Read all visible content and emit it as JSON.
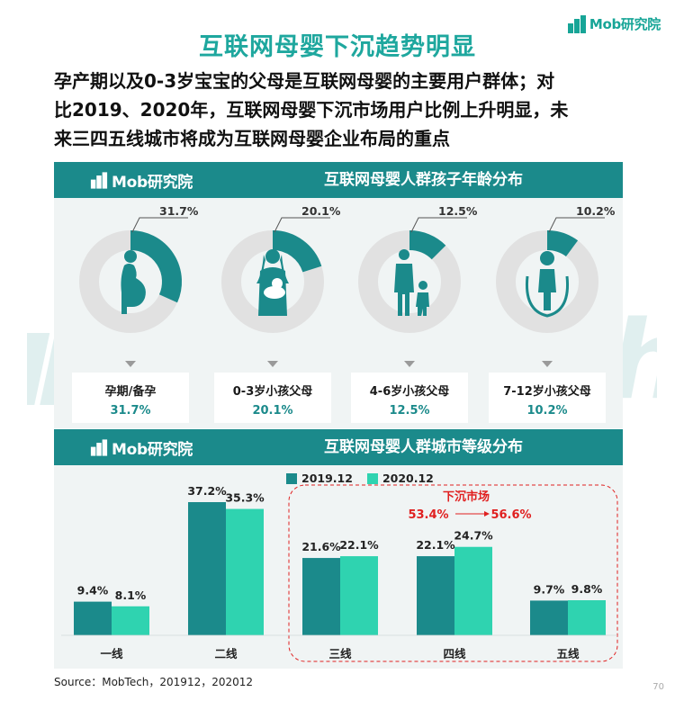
{
  "brand": {
    "logo_text": "Mob研究院",
    "accent": "#1b8a8b",
    "accent_light": "#2fd3b0",
    "title_color": "#1ea79e"
  },
  "watermark": {
    "text": "MobTech袤博"
  },
  "header": {
    "title": "互联网母婴下沉趋势明显",
    "subtitle_lines": [
      "孕产期以及0-3岁宝宝的父母是互联网母婴的主要用户群体；对",
      "比2019、2020年，互联网母婴下沉市场用户比例上升明显，未",
      "来三四五线城市将成为互联网母婴企业布局的重点"
    ]
  },
  "sections": {
    "age": {
      "title": "互联网母婴人群孩子年龄分布"
    },
    "city": {
      "title": "互联网母婴人群城市等级分布"
    }
  },
  "chart_data": [
    {
      "type": "pie",
      "title": "互联网母婴人群孩子年龄分布",
      "categories": [
        "孕期/备孕",
        "0-3岁小孩父母",
        "4-6岁小孩父母",
        "7-12岁小孩父母"
      ],
      "values": [
        31.7,
        20.1,
        12.5,
        10.2
      ],
      "value_labels": [
        "31.7%",
        "20.1%",
        "12.5%",
        "10.2%"
      ],
      "icons": [
        "pregnant-woman-icon",
        "mother-with-baby-icon",
        "parent-with-child-icon",
        "child-jumping-rope-icon"
      ],
      "colors": {
        "fill": "#1b8a8b",
        "track": "#e1e1e1"
      }
    },
    {
      "type": "bar",
      "title": "互联网母婴人群城市等级分布",
      "categories": [
        "一线",
        "二线",
        "三线",
        "四线",
        "五线"
      ],
      "series": [
        {
          "name": "2019.12",
          "values": [
            9.4,
            37.2,
            21.6,
            22.1,
            9.7
          ],
          "labels": [
            "9.4%",
            "37.2%",
            "21.6%",
            "22.1%",
            "9.7%"
          ],
          "color": "#1b8a8b"
        },
        {
          "name": "2020.12",
          "values": [
            8.1,
            35.3,
            22.1,
            24.7,
            9.8
          ],
          "labels": [
            "8.1%",
            "35.3%",
            "22.1%",
            "24.7%",
            "9.8%"
          ],
          "color": "#2fd3b0"
        }
      ],
      "ylim": [
        0,
        40
      ],
      "annotation": {
        "title": "下沉市场",
        "from": "53.4%",
        "to": "56.6%",
        "color": "#e02020",
        "covers": [
          "三线",
          "四线",
          "五线"
        ]
      }
    }
  ],
  "footer": {
    "source": "Source：MobTech，201912，202012",
    "page": "70"
  }
}
